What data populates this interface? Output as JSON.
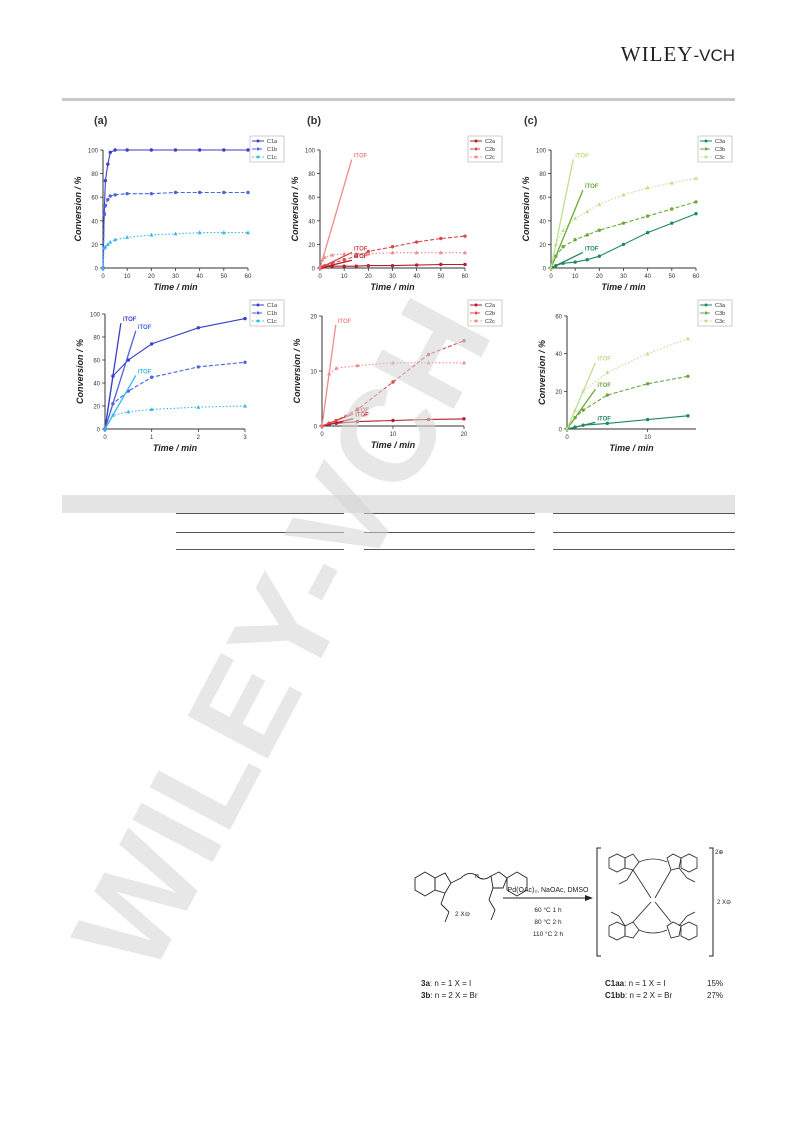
{
  "publisher": {
    "name": "WILEY",
    "suffix": "-VCH"
  },
  "figure": {
    "panel_labels": [
      "(a)",
      "(b)",
      "(c)"
    ]
  },
  "axis_labels": {
    "y": "Conversion / %",
    "x": "Time / min"
  },
  "annotation": "iTOF",
  "colors": {
    "C1a": "#3a3fc8",
    "C1b": "#4a63e0",
    "C1c": "#37b6f0",
    "C2a": "#b31f2a",
    "C2b": "#d94a4a",
    "C2c": "#f08a8a",
    "C3a": "#1f8a5c",
    "C3b": "#6aa83c",
    "C3c": "#bfe08c"
  },
  "chart_data": [
    {
      "type": "line",
      "panel": "a-top",
      "xlim": [
        0,
        60
      ],
      "ylim": [
        0,
        100
      ],
      "xticks": [
        0,
        10,
        20,
        30,
        40,
        50,
        60
      ],
      "yticks": [
        0,
        20,
        40,
        60,
        80,
        100
      ],
      "series": [
        {
          "name": "C1a",
          "x": [
            0,
            0.5,
            1,
            2,
            3,
            5,
            10,
            20,
            30,
            40,
            50,
            60
          ],
          "y": [
            0,
            46,
            74,
            88,
            98,
            100,
            100,
            100,
            100,
            100,
            100,
            100
          ]
        },
        {
          "name": "C1b",
          "x": [
            0,
            0.5,
            1,
            2,
            3,
            5,
            10,
            20,
            30,
            40,
            50,
            60
          ],
          "y": [
            0,
            45,
            53,
            58,
            61,
            62,
            63,
            63,
            64,
            64,
            64,
            64
          ]
        },
        {
          "name": "C1c",
          "x": [
            0,
            0.5,
            1,
            2,
            3,
            5,
            10,
            20,
            30,
            40,
            50,
            60
          ],
          "y": [
            0,
            17,
            18,
            20,
            22,
            24,
            26,
            28,
            29,
            30,
            30,
            30
          ]
        }
      ]
    },
    {
      "type": "line",
      "panel": "b-top",
      "xlim": [
        0,
        60
      ],
      "ylim": [
        0,
        100
      ],
      "xticks": [
        0,
        10,
        20,
        30,
        40,
        50,
        60
      ],
      "yticks": [
        0,
        20,
        40,
        60,
        80,
        100
      ],
      "series": [
        {
          "name": "C2a",
          "x": [
            0,
            1,
            2,
            5,
            10,
            15,
            20,
            30,
            40,
            50,
            60
          ],
          "y": [
            0,
            0.5,
            1,
            1.5,
            1.5,
            1.5,
            2,
            2,
            2.5,
            3,
            3
          ]
        },
        {
          "name": "C2b",
          "x": [
            0,
            1,
            2,
            5,
            10,
            15,
            20,
            30,
            40,
            50,
            60
          ],
          "y": [
            0,
            1,
            2,
            4,
            7,
            10,
            14,
            18,
            22,
            25,
            27
          ]
        },
        {
          "name": "C2c",
          "x": [
            0,
            1,
            2,
            5,
            10,
            15,
            20,
            30,
            40,
            50,
            60
          ],
          "y": [
            0,
            7,
            9,
            11,
            12,
            12,
            12,
            13,
            13,
            13,
            13
          ]
        }
      ]
    },
    {
      "type": "line",
      "panel": "c-top",
      "xlim": [
        0,
        60
      ],
      "ylim": [
        0,
        100
      ],
      "xticks": [
        0,
        10,
        20,
        30,
        40,
        50,
        60
      ],
      "yticks": [
        0,
        20,
        40,
        60,
        80,
        100
      ],
      "series": [
        {
          "name": "C3a",
          "x": [
            0,
            2,
            5,
            10,
            15,
            20,
            30,
            40,
            50,
            60
          ],
          "y": [
            0,
            2,
            4,
            5,
            7,
            10,
            20,
            30,
            38,
            46
          ]
        },
        {
          "name": "C3b",
          "x": [
            0,
            2,
            5,
            10,
            15,
            20,
            30,
            40,
            50,
            60
          ],
          "y": [
            0,
            10,
            18,
            24,
            28,
            32,
            38,
            44,
            50,
            56
          ]
        },
        {
          "name": "C3c",
          "x": [
            0,
            2,
            5,
            10,
            15,
            20,
            30,
            40,
            50,
            60
          ],
          "y": [
            0,
            20,
            32,
            42,
            48,
            54,
            62,
            68,
            72,
            76
          ]
        }
      ]
    },
    {
      "type": "line",
      "panel": "a-bottom",
      "xlim": [
        0,
        3
      ],
      "ylim": [
        0,
        100
      ],
      "xticks": [
        0,
        1,
        2,
        3
      ],
      "yticks": [
        0,
        20,
        40,
        60,
        80,
        100
      ],
      "series": [
        {
          "name": "C1a",
          "x": [
            0,
            0.17,
            0.5,
            1,
            2,
            3
          ],
          "y": [
            0,
            46,
            60,
            74,
            88,
            96
          ]
        },
        {
          "name": "C1b",
          "x": [
            0,
            0.17,
            0.5,
            1,
            2,
            3
          ],
          "y": [
            0,
            22,
            33,
            45,
            54,
            58
          ]
        },
        {
          "name": "C1c",
          "x": [
            0,
            0.17,
            0.5,
            1,
            2,
            3
          ],
          "y": [
            0,
            12,
            15,
            17,
            19,
            20
          ]
        }
      ]
    },
    {
      "type": "line",
      "panel": "b-bottom",
      "xlim": [
        0,
        20
      ],
      "ylim": [
        0,
        20
      ],
      "xticks": [
        0,
        10,
        20
      ],
      "yticks": [
        0,
        10,
        20
      ],
      "series": [
        {
          "name": "C2a",
          "x": [
            0,
            1,
            2,
            5,
            10,
            15,
            20
          ],
          "y": [
            0,
            0.3,
            0.5,
            0.8,
            1,
            1.2,
            1.3
          ]
        },
        {
          "name": "C2b",
          "x": [
            0,
            1,
            2,
            5,
            10,
            15,
            20
          ],
          "y": [
            0,
            0.5,
            1,
            3,
            8,
            13,
            15.5
          ]
        },
        {
          "name": "C2c",
          "x": [
            0,
            1,
            2,
            5,
            10,
            15,
            20
          ],
          "y": [
            0,
            9.5,
            10.5,
            11,
            11.5,
            11.5,
            11.5
          ]
        }
      ]
    },
    {
      "type": "line",
      "panel": "c-bottom",
      "xlim": [
        0,
        16
      ],
      "ylim": [
        0,
        60
      ],
      "xticks": [
        0,
        10
      ],
      "yticks": [
        0,
        20,
        40,
        60
      ],
      "series": [
        {
          "name": "C3a",
          "x": [
            0,
            1,
            2,
            5,
            10,
            15
          ],
          "y": [
            0,
            1,
            2,
            3,
            5,
            7
          ]
        },
        {
          "name": "C3b",
          "x": [
            0,
            1,
            2,
            5,
            10,
            15
          ],
          "y": [
            0,
            6,
            10,
            18,
            24,
            28
          ]
        },
        {
          "name": "C3c",
          "x": [
            0,
            1,
            2,
            5,
            10,
            15
          ],
          "y": [
            0,
            10,
            20,
            30,
            40,
            48
          ]
        }
      ]
    }
  ],
  "scheme": {
    "conditions": [
      "Pd(OAc)₂, NaOAc, DMSO",
      "60 °C   1 h",
      "80 °C   2 h",
      "110 °C   2 h"
    ],
    "reactant_n": "n",
    "reactant_counterion": "2 X⊖",
    "product_charge": "2⊕",
    "product_counterion": "2 X⊖",
    "reactant_labels": [
      {
        "id": "3a",
        "text": ": n = 1 X = I"
      },
      {
        "id": "3b",
        "text": ": n = 2 X = Br"
      }
    ],
    "product_labels": [
      {
        "id": "C1aa",
        "text": ": n = 1 X = I",
        "yield": "15%"
      },
      {
        "id": "C1bb",
        "text": ": n = 2 X = Br",
        "yield": "27%"
      }
    ]
  },
  "watermark": "WILEY-VCH"
}
